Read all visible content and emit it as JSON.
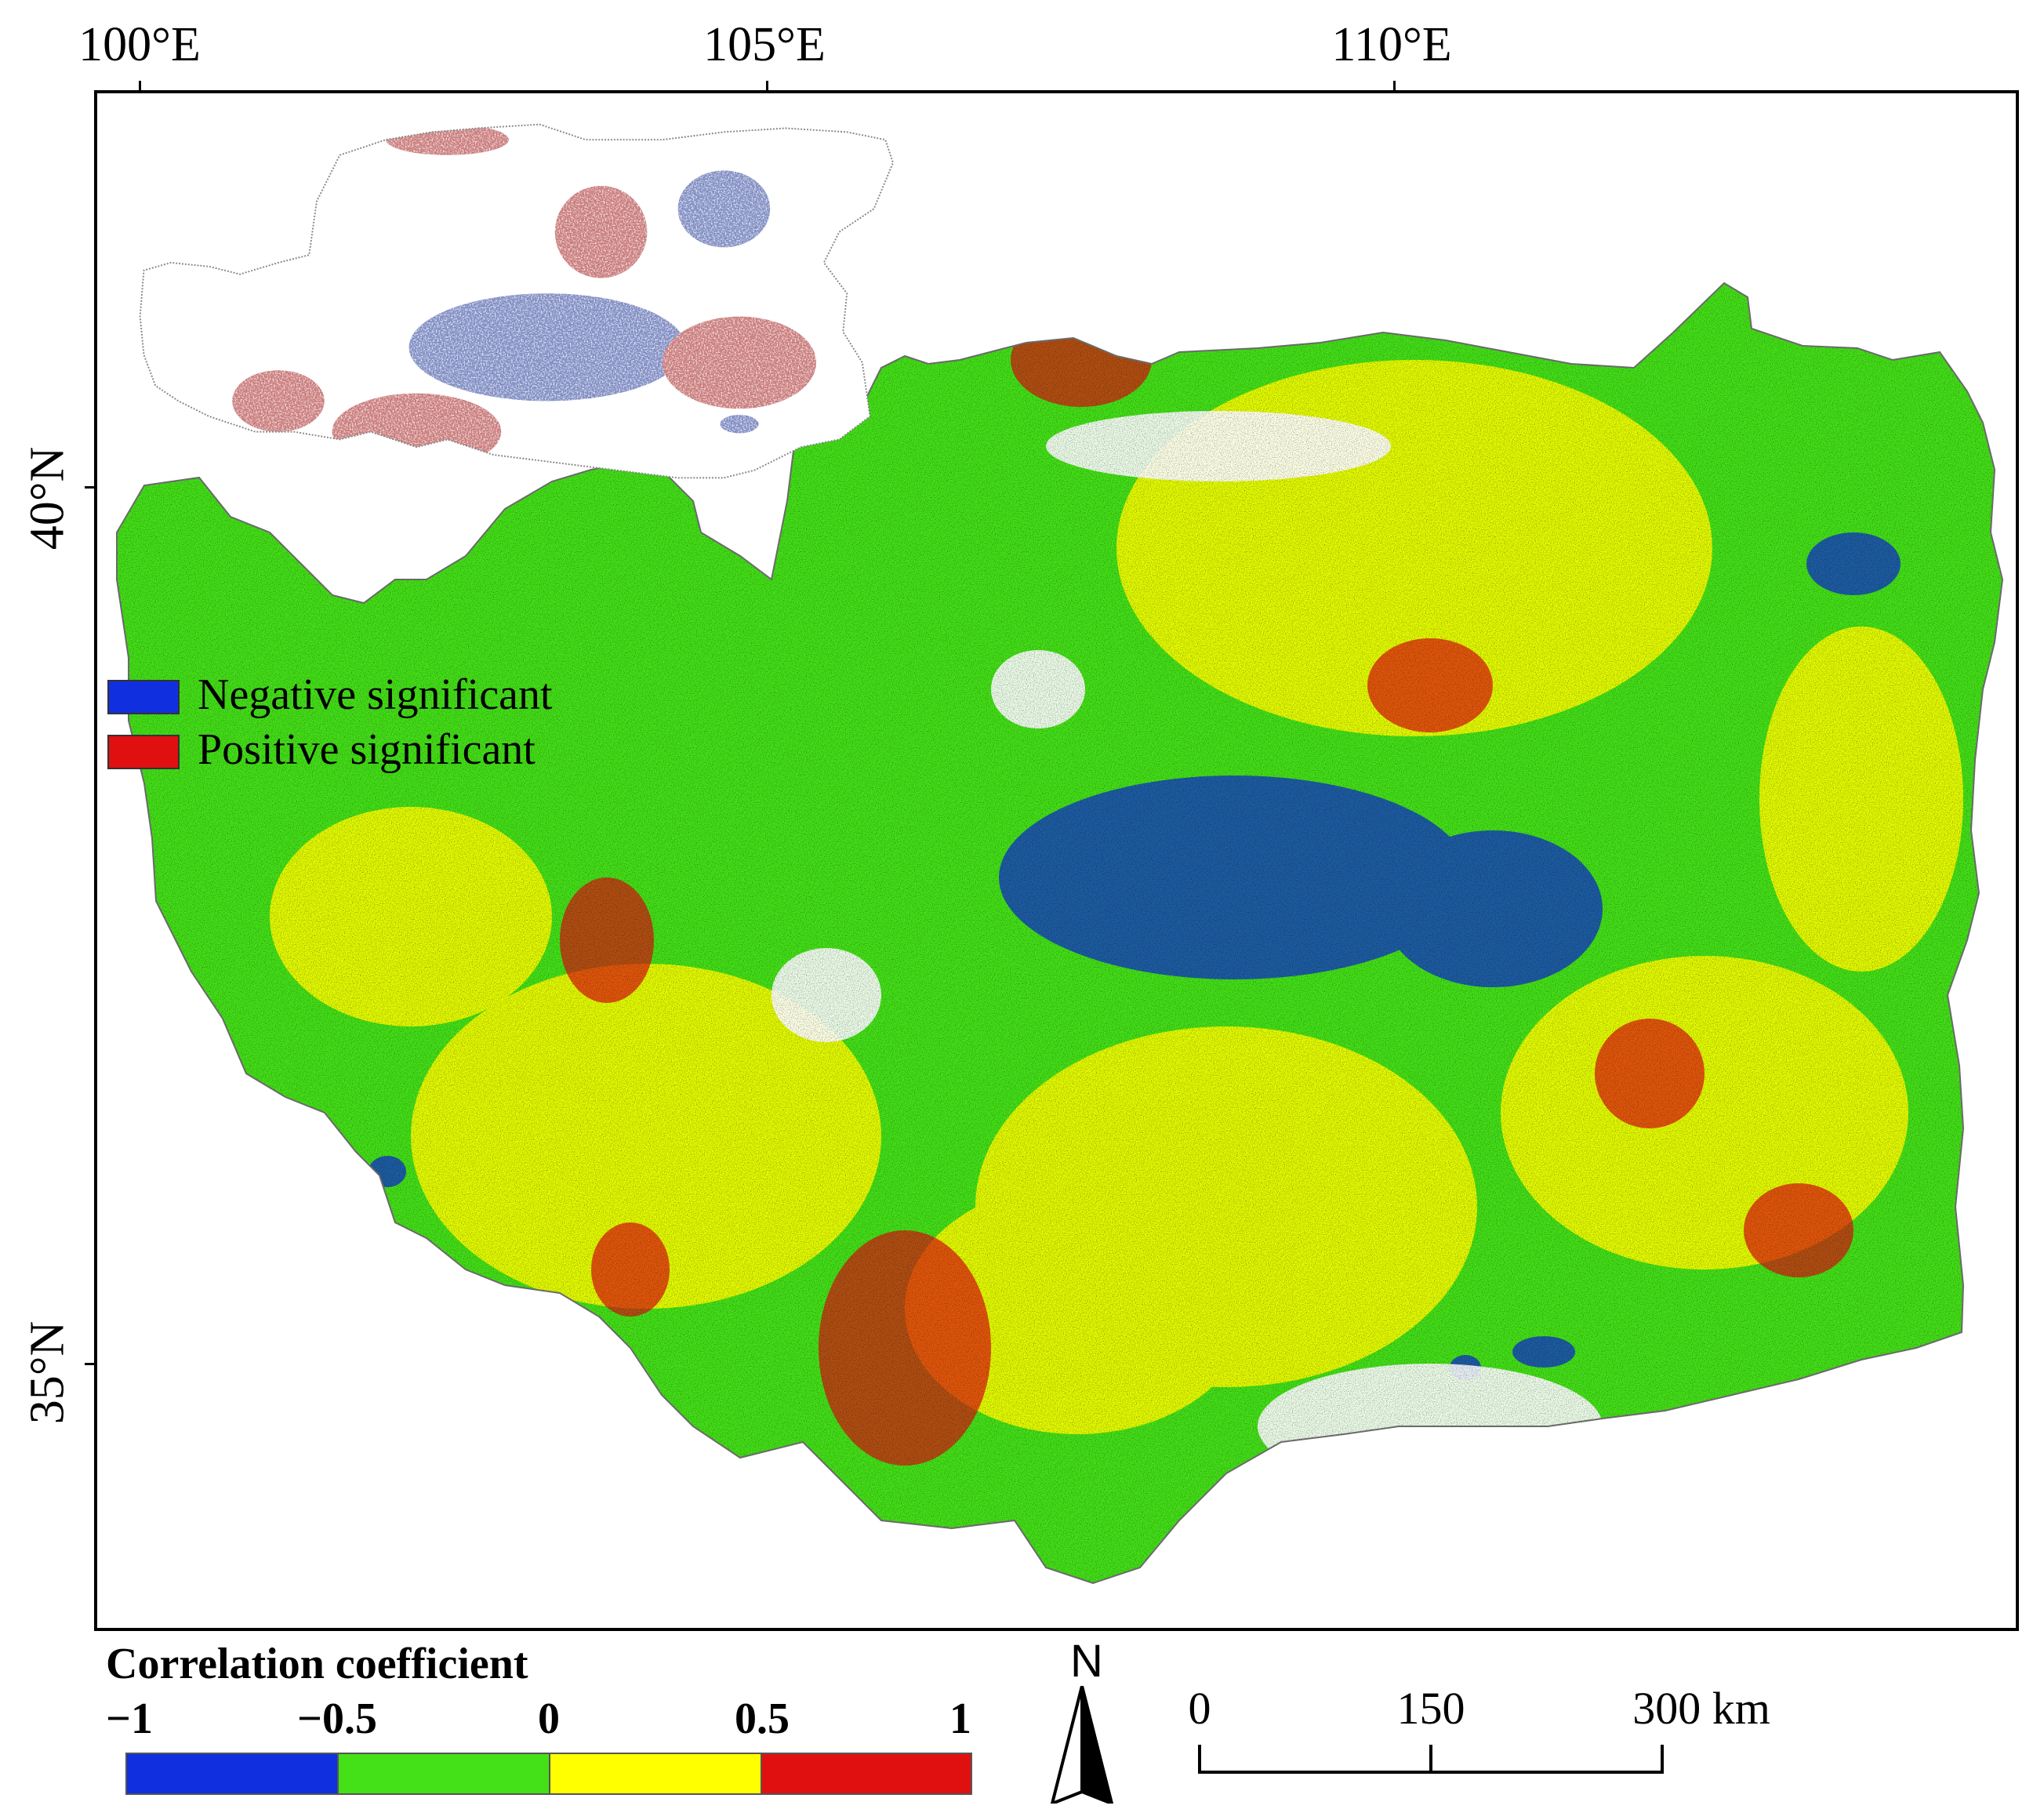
{
  "map": {
    "lon_labels": [
      "100°E",
      "105°E",
      "110°E"
    ],
    "lat_labels": [
      "40°N",
      "35°N"
    ],
    "colors": {
      "negative_strong": "#1030d0",
      "negative_weak": "#44e018",
      "positive_weak": "#ffff00",
      "positive_strong": "#e01010",
      "inset_negative": "#2a3f9a",
      "inset_positive": "#a52020"
    }
  },
  "inset_legend": {
    "items": [
      {
        "label": "Negative significant",
        "color": "#1030e0"
      },
      {
        "label": "Positive significant",
        "color": "#e01010"
      }
    ]
  },
  "colorbar": {
    "title": "Correlation coefficient",
    "ticks": [
      "−1",
      "−0.5",
      "0",
      "0.5",
      "1"
    ],
    "segments": [
      {
        "range": "-1 to -0.5",
        "color": "#1030e0"
      },
      {
        "range": "-0.5 to 0",
        "color": "#44e018"
      },
      {
        "range": "0 to 0.5",
        "color": "#ffff00"
      },
      {
        "range": "0.5 to 1",
        "color": "#e01010"
      }
    ]
  },
  "north_arrow": {
    "label": "N"
  },
  "scale_bar": {
    "labels": [
      "0",
      "150",
      "300 km"
    ]
  }
}
